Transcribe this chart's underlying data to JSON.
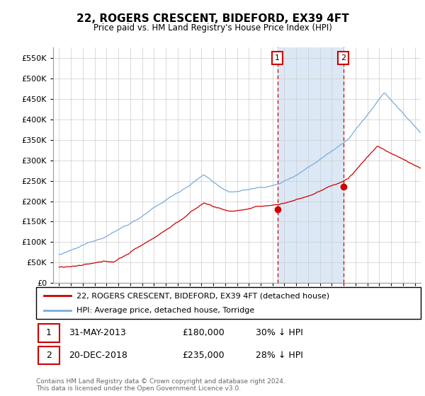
{
  "title": "22, ROGERS CRESCENT, BIDEFORD, EX39 4FT",
  "subtitle": "Price paid vs. HM Land Registry's House Price Index (HPI)",
  "hpi_label": "HPI: Average price, detached house, Torridge",
  "property_label": "22, ROGERS CRESCENT, BIDEFORD, EX39 4FT (detached house)",
  "footer": "Contains HM Land Registry data © Crown copyright and database right 2024.\nThis data is licensed under the Open Government Licence v3.0.",
  "annotation1": {
    "num": "1",
    "date": "31-MAY-2013",
    "price": "£180,000",
    "hpi": "30% ↓ HPI"
  },
  "annotation2": {
    "num": "2",
    "date": "20-DEC-2018",
    "price": "£235,000",
    "hpi": "28% ↓ HPI"
  },
  "ylim": [
    0,
    575000
  ],
  "yticks": [
    0,
    50000,
    100000,
    150000,
    200000,
    250000,
    300000,
    350000,
    400000,
    450000,
    500000,
    550000
  ],
  "hpi_color": "#7aabdb",
  "property_color": "#cc0000",
  "annotation_color": "#cc0000",
  "highlight_bg": "#dce8f5",
  "ann1_x": 2013.42,
  "ann2_x": 2018.97,
  "ann1_marker_y": 180000,
  "ann2_marker_y": 235000,
  "xlim_left": 1995.0,
  "xlim_right": 2025.5
}
